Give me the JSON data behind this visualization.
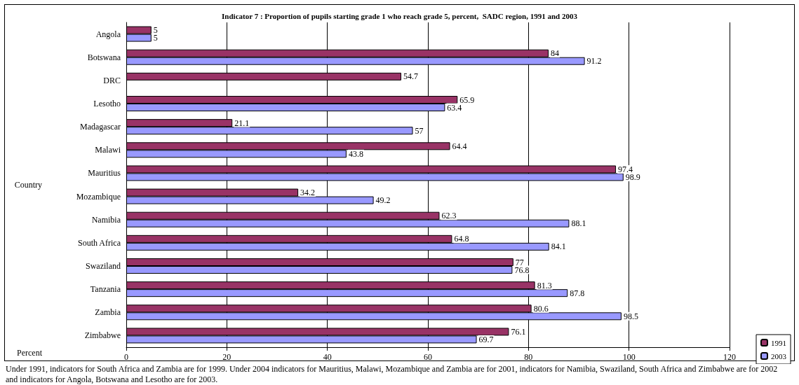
{
  "chart_data": {
    "type": "bar",
    "orientation": "horizontal",
    "title": "Indicator 7 : Proportion of pupils starting grade 1 who reach grade 5, percent,  SADC region, 1991 and 2003",
    "xlabel": "Percent",
    "ylabel": "Country",
    "categories": [
      "Angola",
      "Botswana",
      "DRC",
      "Lesotho",
      "Madagascar",
      "Malawi",
      "Mauritius",
      "Mozambique",
      "Namibia",
      "South Africa",
      "Swaziland",
      "Tanzania",
      "Zambia",
      "Zimbabwe"
    ],
    "series": [
      {
        "name": "1991",
        "color": "#993366",
        "values": [
          5,
          84,
          54.7,
          65.9,
          21.1,
          64.4,
          97.4,
          34.2,
          62.3,
          64.8,
          77,
          81.3,
          80.6,
          76.1
        ]
      },
      {
        "name": "2003",
        "color": "#9999ff",
        "values": [
          5,
          91.2,
          null,
          63.4,
          57,
          43.8,
          98.9,
          49.2,
          88.1,
          84.1,
          76.8,
          87.8,
          98.5,
          69.7
        ]
      }
    ],
    "xlim": [
      0,
      120
    ],
    "xticks": [
      0,
      20,
      40,
      60,
      80,
      100,
      120
    ],
    "grid": "x",
    "legend": "right",
    "data_labels": true,
    "annotations": [
      "Under 1991, indicators for South Africa and Zambia  are for 1999. Under 2004 indicators for Mauritius,  Malawi, Mozambique and Zambia are for 2001, indicators for Namibia, Swaziland, South Africa and Zimbabwe are for 2002 and  indicators for Angola, Botswana and  Lesotho  are for 2003."
    ]
  }
}
